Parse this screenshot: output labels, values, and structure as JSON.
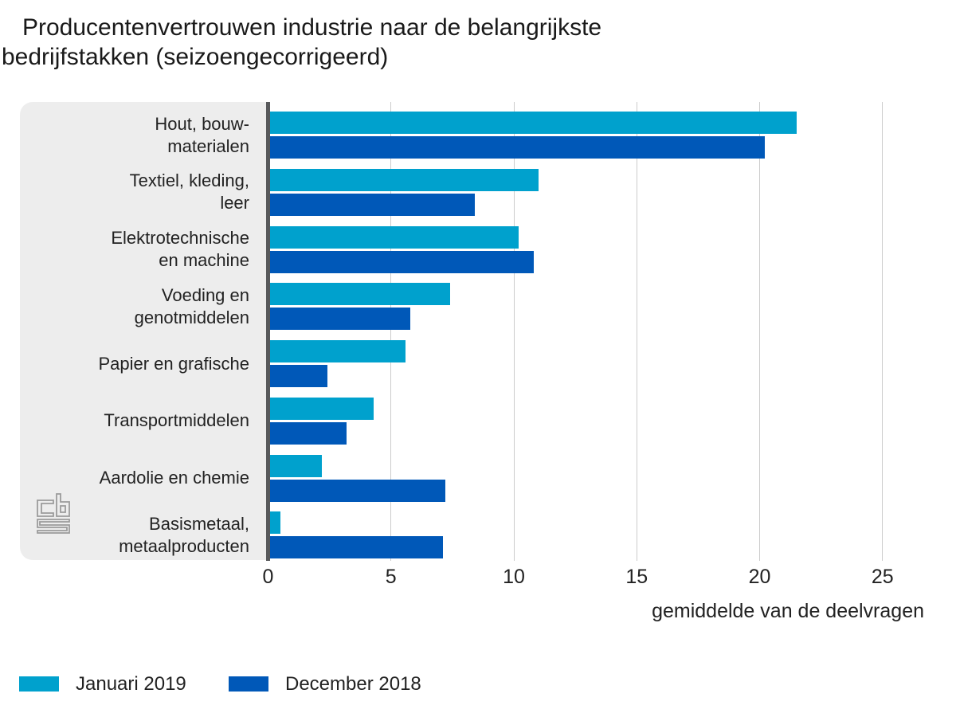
{
  "title": {
    "line1": "Producentenvertrouwen industrie naar de belangrijkste",
    "line2": "bedrijfstakken (seizoengecorrigeerd)"
  },
  "chart_data": {
    "type": "bar",
    "orientation": "horizontal",
    "title": "Producentenvertrouwen industrie naar de belangrijkste bedrijfstakken (seizoengecorrigeerd)",
    "xlabel": "gemiddelde van de deelvragen",
    "xlim": [
      0,
      26
    ],
    "xticks": [
      0,
      5,
      10,
      15,
      20,
      25
    ],
    "grid": true,
    "legend_position": "bottom-left",
    "categories": [
      {
        "label": "Hout, bouwmaterialen",
        "lines": [
          "Hout, bouw-",
          "materialen"
        ]
      },
      {
        "label": "Textiel, kleding, leer",
        "lines": [
          "Textiel, kleding,",
          "leer"
        ]
      },
      {
        "label": "Elektrotechnische en machine",
        "lines": [
          "Elektrotechnische",
          "en machine"
        ]
      },
      {
        "label": "Voeding en genotmiddelen",
        "lines": [
          "Voeding en",
          "genotmiddelen"
        ]
      },
      {
        "label": "Papier en grafische",
        "lines": [
          "Papier en grafische"
        ]
      },
      {
        "label": "Transportmiddelen",
        "lines": [
          "Transportmiddelen"
        ]
      },
      {
        "label": "Aardolie en chemie",
        "lines": [
          "Aardolie en chemie"
        ]
      },
      {
        "label": "Basismetaal, metaalproducten",
        "lines": [
          "Basismetaal,",
          "metaalproducten"
        ]
      }
    ],
    "series": [
      {
        "name": "Januari 2019",
        "color": "#00a1cd",
        "values": [
          21.5,
          11.0,
          10.2,
          7.4,
          5.6,
          4.3,
          2.2,
          0.5
        ]
      },
      {
        "name": "December 2018",
        "color": "#0058b8",
        "values": [
          20.2,
          8.4,
          10.8,
          5.8,
          2.4,
          3.2,
          7.2,
          7.1
        ]
      }
    ]
  },
  "style": {
    "panel_bg": "#ededed",
    "axis_line_color": "#58595b",
    "gridline_color": "#cccccc",
    "text_color": "#222222",
    "logo_color": "#9b9b9b"
  },
  "branding": {
    "logo": "cbs-logo"
  }
}
